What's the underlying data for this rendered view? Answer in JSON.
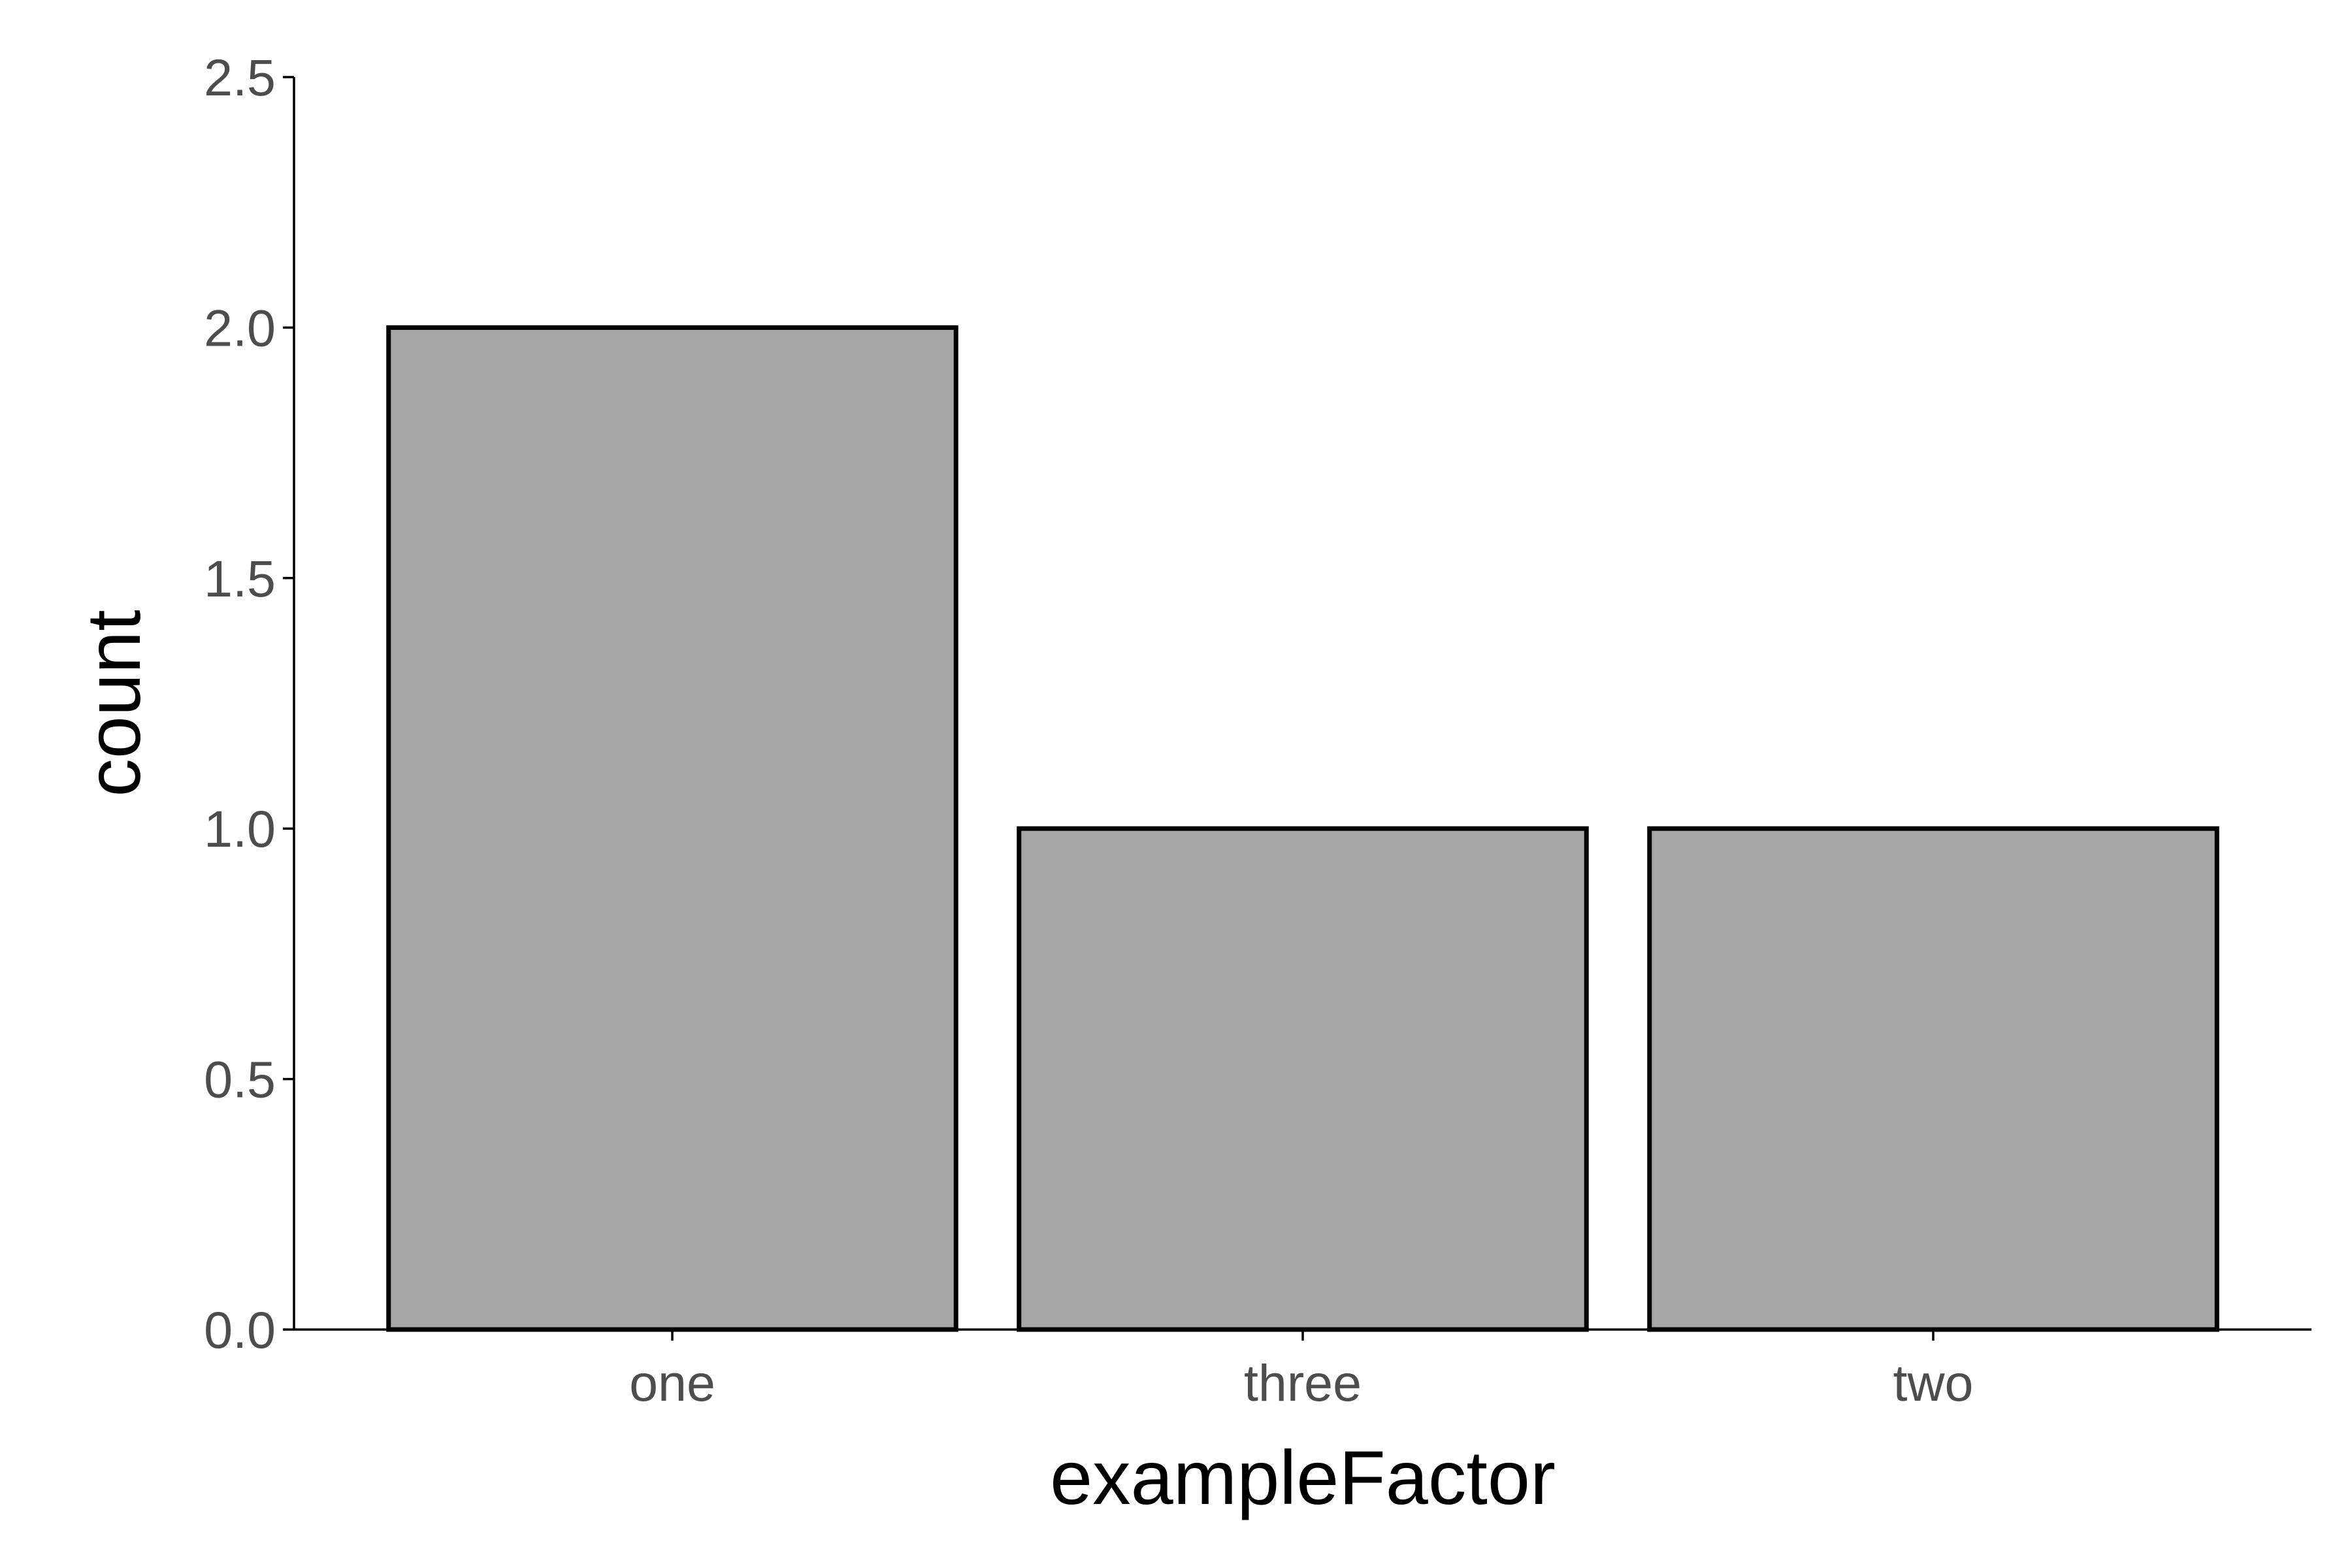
{
  "chart_data": {
    "type": "bar",
    "title": "",
    "xlabel": "exampleFactor",
    "ylabel": "count",
    "categories": [
      "one",
      "three",
      "two"
    ],
    "values": [
      2,
      1,
      1
    ],
    "ylim": [
      0,
      2.5
    ],
    "yticks": [
      0,
      0.5,
      1,
      1.5,
      2,
      2.5
    ],
    "ytick_labels": [
      "0.0",
      "0.5",
      "1.0",
      "1.5",
      "2.0",
      "2.5"
    ],
    "grid": false,
    "legend": "none",
    "colors": {
      "bar_fill": "#a6a6a6",
      "bar_stroke": "#000000",
      "axis": "#000000",
      "tick_text": "#4d4d4d",
      "title_text": "#000000"
    }
  }
}
